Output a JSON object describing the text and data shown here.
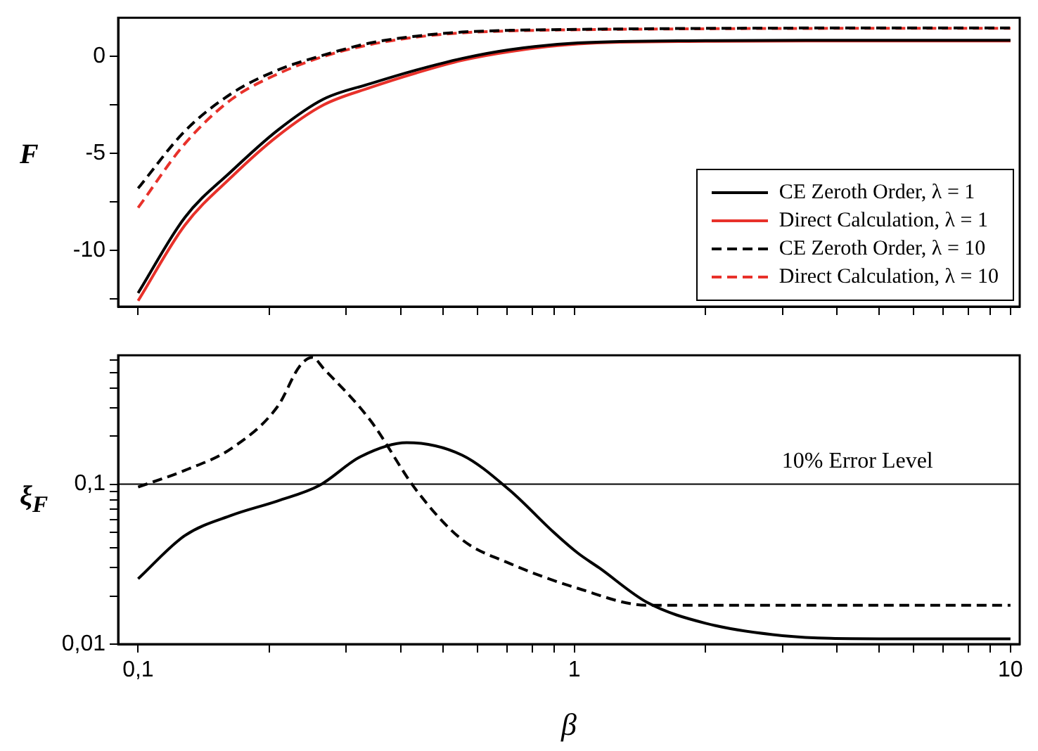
{
  "chart_data": [
    {
      "type": "line",
      "ylabel": "F",
      "log": "x",
      "legend": "bottom right",
      "line_style": "solid",
      "marker": "none",
      "grid": false,
      "tick_labels": "y",
      "x": [
        0.1,
        0.128,
        0.164,
        0.209,
        0.266,
        0.341,
        0.434,
        0.553,
        0.71,
        1.02,
        2,
        4,
        10
      ],
      "xlim": [
        0.09,
        10.5
      ],
      "xticks": [
        {
          "value": 0.1,
          "label": null
        },
        {
          "value": 0.2,
          "label": null
        },
        {
          "value": 0.3,
          "label": null
        },
        {
          "value": 0.4,
          "label": null
        },
        {
          "value": 0.5,
          "label": null
        },
        {
          "value": 0.6,
          "label": null
        },
        {
          "value": 0.7,
          "label": null
        },
        {
          "value": 0.8,
          "label": null
        },
        {
          "value": 0.9,
          "label": null
        },
        {
          "value": 1,
          "label": null
        },
        {
          "value": 2,
          "label": null
        },
        {
          "value": 3,
          "label": null
        },
        {
          "value": 4,
          "label": null
        },
        {
          "value": 5,
          "label": null
        },
        {
          "value": 6,
          "label": null
        },
        {
          "value": 7,
          "label": null
        },
        {
          "value": 8,
          "label": null
        },
        {
          "value": 9,
          "label": null
        },
        {
          "value": 10,
          "label": null
        }
      ],
      "ylim": [
        -12.9,
        2
      ],
      "yticks": [
        {
          "value": -12.5,
          "label": null
        },
        -10,
        {
          "value": -7.5,
          "label": null
        },
        -5,
        {
          "value": -2.5,
          "label": null
        },
        0
      ],
      "series": [
        {
          "name": "CE Zeroth Order, λ = 1",
          "color": "#000000",
          "values": [
            -12.2,
            -8.3,
            -5.9,
            -3.8,
            -2.2,
            -1.4,
            -0.7,
            -0.1,
            0.35,
            0.7,
            0.82,
            0.84,
            0.84
          ]
        },
        {
          "name": "Direct Calculation, λ = 1",
          "color": "#e8312a",
          "values": [
            -12.6,
            -8.7,
            -6.2,
            -4.1,
            -2.5,
            -1.6,
            -0.85,
            -0.2,
            0.25,
            0.65,
            0.78,
            0.8,
            0.8
          ]
        },
        {
          "name": "CE Zeroth Order, λ = 10",
          "color": "#000000",
          "line_style": "dashed",
          "values": [
            -6.8,
            -3.85,
            -1.9,
            -0.7,
            0.07,
            0.7,
            1.05,
            1.26,
            1.35,
            1.4,
            1.45,
            1.47,
            1.47
          ]
        },
        {
          "name": "Direct Calculation, λ = 10",
          "color": "#e8312a",
          "line_style": "dashed",
          "values": [
            -7.8,
            -4.5,
            -2.2,
            -0.9,
            0,
            0.62,
            1.0,
            1.22,
            1.32,
            1.38,
            1.43,
            1.45,
            1.45
          ]
        }
      ]
    },
    {
      "type": "line",
      "xlabel": "β",
      "ylabel": "ξ$_{F}$",
      "log": "xy",
      "legend": false,
      "line_style": "solid",
      "marker": "none",
      "grid": false,
      "xlim": [
        0.09,
        10.5
      ],
      "xticks": [
        {
          "value": 0.1,
          "label": "0,1"
        },
        {
          "value": 0.2,
          "label": null
        },
        {
          "value": 0.3,
          "label": null
        },
        {
          "value": 0.4,
          "label": null
        },
        {
          "value": 0.5,
          "label": null
        },
        {
          "value": 0.6,
          "label": null
        },
        {
          "value": 0.7,
          "label": null
        },
        {
          "value": 0.8,
          "label": null
        },
        {
          "value": 0.9,
          "label": null
        },
        1,
        {
          "value": 2,
          "label": null
        },
        {
          "value": 3,
          "label": null
        },
        {
          "value": 4,
          "label": null
        },
        {
          "value": 5,
          "label": null
        },
        {
          "value": 6,
          "label": null
        },
        {
          "value": 7,
          "label": null
        },
        {
          "value": 8,
          "label": null
        },
        {
          "value": 9,
          "label": null
        },
        10
      ],
      "ylim": [
        0.01,
        0.64
      ],
      "yticks": [
        {
          "value": 0.01,
          "label": "0,01"
        },
        {
          "value": 0.02,
          "label": null
        },
        {
          "value": 0.03,
          "label": null
        },
        {
          "value": 0.04,
          "label": null
        },
        {
          "value": 0.05,
          "label": null
        },
        {
          "value": 0.06,
          "label": null
        },
        {
          "value": 0.07,
          "label": null
        },
        {
          "value": 0.08,
          "label": null
        },
        {
          "value": 0.09,
          "label": null
        },
        {
          "value": 0.1,
          "label": "0,1"
        },
        {
          "value": 0.2,
          "label": null
        },
        {
          "value": 0.3,
          "label": null
        },
        {
          "value": 0.4,
          "label": null
        },
        {
          "value": 0.5,
          "label": null
        },
        {
          "value": 0.6,
          "label": null
        }
      ],
      "ref_lines": [
        {
          "axis": "y",
          "value": 0.1,
          "label": "10% Error Level",
          "color": "#000000"
        }
      ],
      "series": [
        {
          "color": "#000000",
          "x": [
            0.1,
            0.128,
            0.164,
            0.209,
            0.26,
            0.324,
            0.413,
            0.553,
            0.71,
            0.9,
            1.02,
            1.14,
            1.47,
            2.0,
            3.0,
            5.0,
            10
          ],
          "values": [
            0.0256,
            0.0477,
            0.064,
            0.0786,
            0.098,
            0.149,
            0.182,
            0.152,
            0.092,
            0.0496,
            0.037,
            0.03,
            0.0182,
            0.0135,
            0.0113,
            0.0108,
            0.0108
          ]
        },
        {
          "color": "#000000",
          "line_style": "dashed",
          "x": [
            0.1,
            0.128,
            0.164,
            0.209,
            0.235,
            0.251,
            0.266,
            0.341,
            0.434,
            0.553,
            0.71,
            1.02,
            1.47,
            3,
            10
          ],
          "values": [
            0.096,
            0.122,
            0.168,
            0.307,
            0.55,
            0.62,
            0.53,
            0.25,
            0.092,
            0.045,
            0.032,
            0.0223,
            0.0175,
            0.0175,
            0.0175
          ]
        }
      ]
    }
  ]
}
